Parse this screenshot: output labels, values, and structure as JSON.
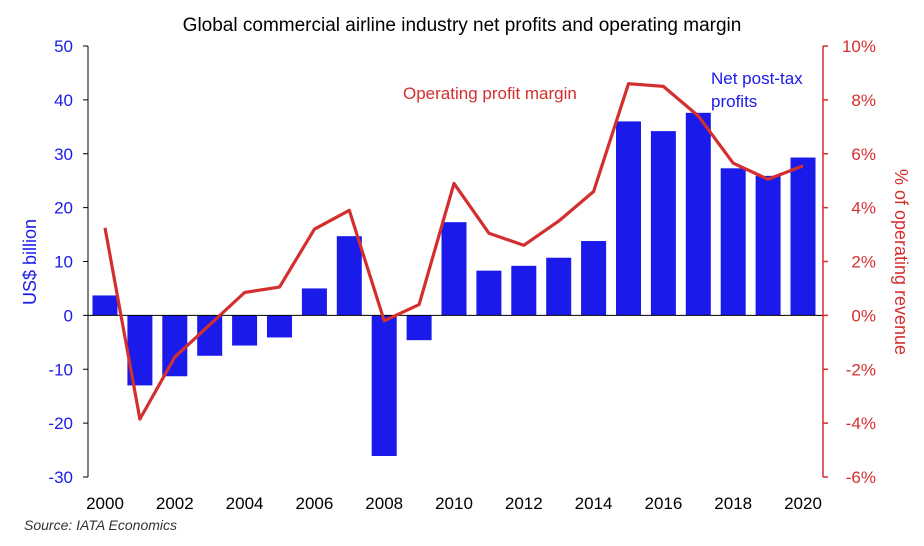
{
  "chart_data": {
    "type": "bar",
    "title": "Global commercial airline industry net profits and operating margin",
    "x": [
      2000,
      2001,
      2002,
      2003,
      2004,
      2005,
      2006,
      2007,
      2008,
      2009,
      2010,
      2011,
      2012,
      2013,
      2014,
      2015,
      2016,
      2017,
      2018,
      2019,
      2020
    ],
    "x_tick_labels": [
      "2000",
      "2002",
      "2004",
      "2006",
      "2008",
      "2010",
      "2012",
      "2014",
      "2016",
      "2018",
      "2020"
    ],
    "series": [
      {
        "name": "Net post-tax profits",
        "type": "bar",
        "axis": "left",
        "color": "#1a1aeb",
        "values": [
          3.7,
          -13.0,
          -11.3,
          -7.5,
          -5.6,
          -4.1,
          5.0,
          14.7,
          -26.1,
          -4.6,
          17.3,
          8.3,
          9.2,
          10.7,
          13.8,
          36.0,
          34.2,
          37.6,
          27.3,
          25.9,
          29.3
        ]
      },
      {
        "name": "Operating profit margin",
        "type": "line",
        "axis": "right",
        "color": "#d32f2f",
        "values": [
          3.25,
          -3.85,
          -1.55,
          -0.35,
          0.85,
          1.05,
          3.2,
          3.9,
          -0.2,
          0.4,
          4.9,
          3.05,
          2.6,
          3.5,
          4.6,
          8.6,
          8.5,
          7.4,
          5.65,
          5.05,
          5.55
        ]
      }
    ],
    "ylabel": "US$ billion",
    "ylim": [
      -30,
      50
    ],
    "yticks": [
      "50",
      "40",
      "30",
      "20",
      "10",
      "0",
      "-10",
      "-20",
      "-30"
    ],
    "y2label": "% of operating revenue",
    "y2lim": [
      -6,
      10
    ],
    "y2ticks": [
      "10%",
      "8%",
      "6%",
      "4%",
      "2%",
      "0%",
      "-2%",
      "-4%",
      "-6%"
    ],
    "annotations": [
      "Operating profit margin",
      "Net post-tax profits"
    ],
    "left_axis_color": "#1a1aeb",
    "right_axis_color": "#d32f2f",
    "grid": false,
    "source": "Source: IATA Economics"
  }
}
